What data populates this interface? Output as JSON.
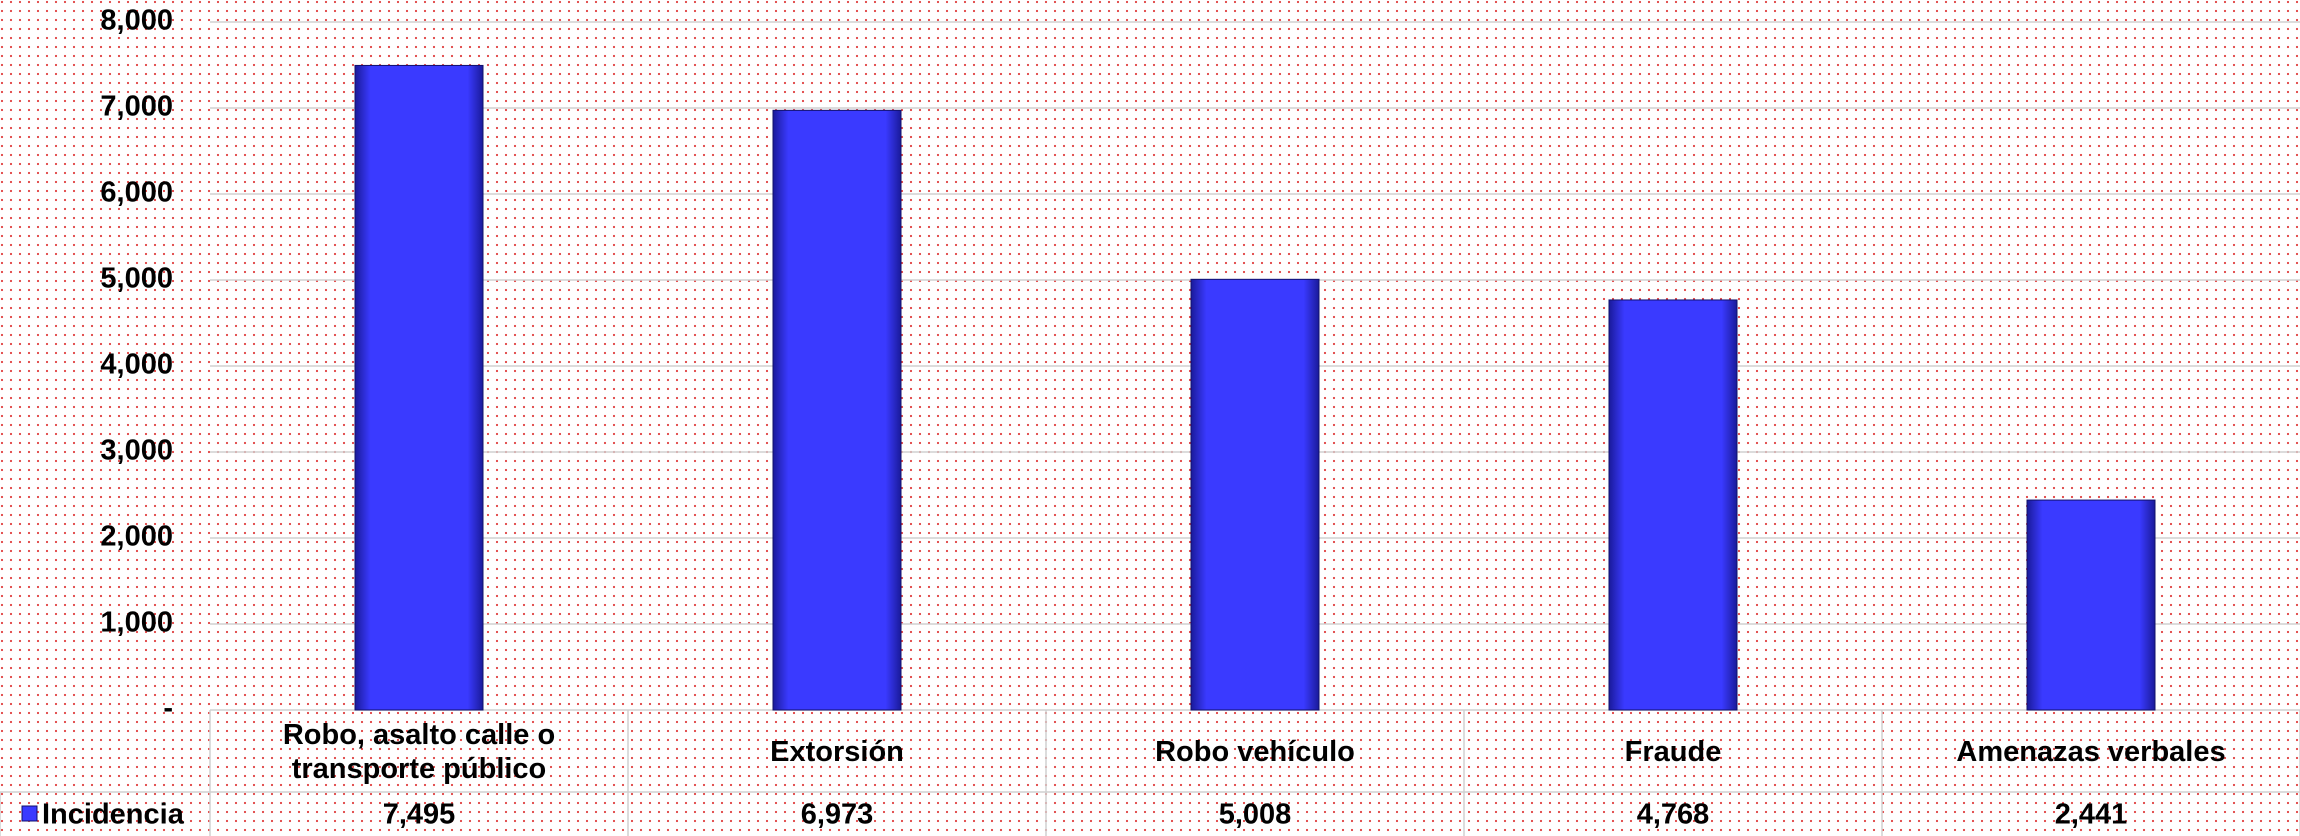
{
  "chart_data": {
    "type": "bar",
    "categories": [
      "Robo, asalto calle o transporte público",
      "Extorsión",
      "Robo vehículo",
      "Fraude",
      "Amenazas verbales"
    ],
    "series": [
      {
        "name": "Incidencia",
        "color": "#3a3aff",
        "values": [
          7495,
          6973,
          5008,
          4768,
          2441
        ],
        "value_labels": [
          "7,495",
          "6,973",
          "5,008",
          "4,768",
          "2,441"
        ]
      }
    ],
    "ylim": [
      0,
      8000
    ],
    "yticks": [
      {
        "value": 0,
        "label": "-"
      },
      {
        "value": 1000,
        "label": "1,000"
      },
      {
        "value": 2000,
        "label": "2,000"
      },
      {
        "value": 3000,
        "label": "3,000"
      },
      {
        "value": 4000,
        "label": "4,000"
      },
      {
        "value": 5000,
        "label": "5,000"
      },
      {
        "value": 6000,
        "label": "6,000"
      },
      {
        "value": 7000,
        "label": "7,000"
      },
      {
        "value": 8000,
        "label": "8,000"
      }
    ],
    "grid": true
  }
}
